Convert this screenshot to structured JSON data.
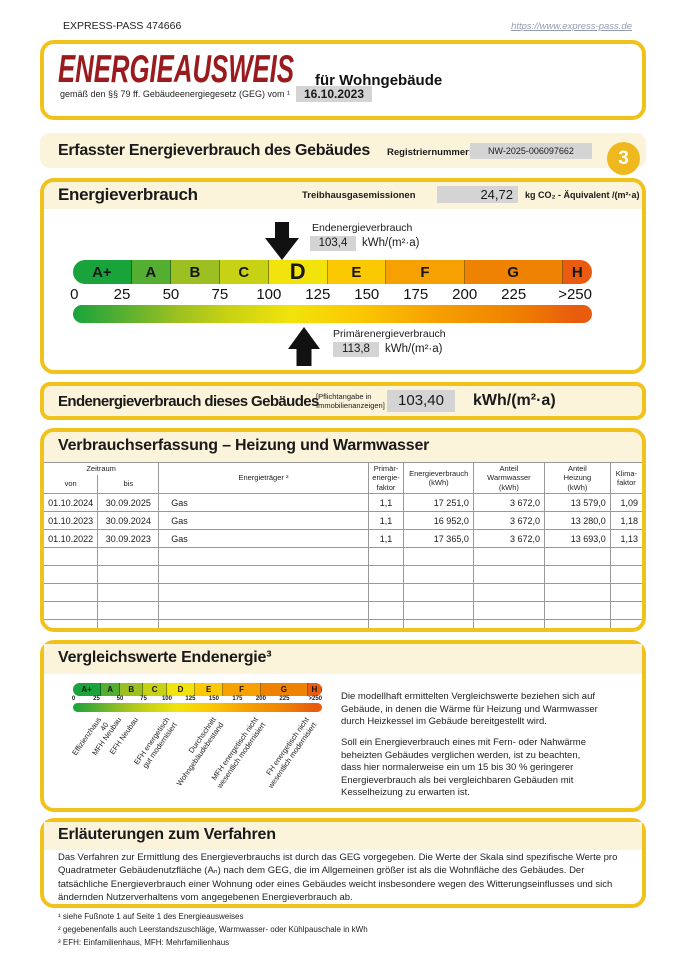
{
  "header": {
    "document_id": "EXPRESS-PASS 474666",
    "website": "https://www.express-pass.de"
  },
  "page_number": "3",
  "title": {
    "main": "ENERGIEAUSWEIS",
    "subtitle": "für Wohngebäude",
    "law_note": "gemäß den §§ 79 ff. Gebäudeenergiegesetz (GEG) vom ¹",
    "date": "16.10.2023"
  },
  "sections": {
    "erfasster": {
      "title": "Erfasster Energieverbrauch des Gebäudes",
      "reg_label": "Registriernummer:",
      "reg_number": "NW-2025-006097662"
    },
    "energieverbrauch": {
      "title": "Energieverbrauch",
      "ghg_label": "Treibhausgasemissionen",
      "ghg_value": "24,72",
      "ghg_unit": "kg CO₂ - Äquivalent  /(m²·a)",
      "end_label": "Endenergieverbrauch",
      "end_value": "103,4",
      "end_unit": "kWh/(m²·a)",
      "primary_label": "Primärenergieverbrauch",
      "primary_value": "113,8",
      "primary_unit": "kWh/(m²·a)",
      "scale": {
        "classes": [
          {
            "label": "A+",
            "color": "#18A43B",
            "units": 30
          },
          {
            "label": "A",
            "color": "#53AE32",
            "units": 20
          },
          {
            "label": "B",
            "color": "#9CC021",
            "units": 25
          },
          {
            "label": "C",
            "color": "#C8D214",
            "units": 25
          },
          {
            "label": "D",
            "color": "#F2E30C",
            "units": 30,
            "current": true
          },
          {
            "label": "E",
            "color": "#FBC802",
            "units": 30
          },
          {
            "label": "F",
            "color": "#F6A001",
            "units": 40
          },
          {
            "label": "G",
            "color": "#EF8200",
            "units": 50
          },
          {
            "label": "H",
            "color": "#E95B0E",
            "units": 15
          }
        ],
        "ticks": [
          "0",
          "25",
          "50",
          "75",
          "100",
          "125",
          "150",
          "175",
          "200",
          "225",
          ">250"
        ]
      }
    },
    "endenergie_bar": {
      "title": "Endenergieverbrauch dieses Gebäudes",
      "note": "[Pflichtangabe in\nImmobilienanzeigen]",
      "value": "103,40",
      "unit": "kWh/(m²·a)"
    },
    "verbrauchserfassung": {
      "title": "Verbrauchserfassung – Heizung und Warmwasser",
      "headers": {
        "zeitraum": "Zeitraum",
        "von": "von",
        "bis": "bis",
        "energietraeger": "Energieträger ²",
        "pef": "Primär-\nenergie-\nfaktor",
        "verbrauch": "Energieverbrauch\n(kWh)",
        "warmwasser": "Anteil\nWarmwasser\n(kWh)",
        "heizung": "Anteil\nHeizung\n(kWh)",
        "klima": "Klima-\nfaktor"
      },
      "rows": [
        [
          "01.10.2024",
          "30.09.2025",
          "Gas",
          "1,1",
          "17 251,0",
          "3 672,0",
          "13 579,0",
          "1,09"
        ],
        [
          "01.10.2023",
          "30.09.2024",
          "Gas",
          "1,1",
          "16 952,0",
          "3 672,0",
          "13 280,0",
          "1,18"
        ],
        [
          "01.10.2022",
          "30.09.2023",
          "Gas",
          "1,1",
          "17 365,0",
          "3 672,0",
          "13 693,0",
          "1,13"
        ]
      ],
      "empty_row_count": 6
    },
    "vergleichswerte": {
      "title": "Vergleichswerte Endenergie³",
      "labels": [
        {
          "text": "Effizienzhaus 40",
          "value": 25
        },
        {
          "text": "MFH Neubau",
          "value": 46
        },
        {
          "text": "EFH Neubau",
          "value": 64
        },
        {
          "text": "EFH energetisch\ngut modernisiert",
          "value": 98
        },
        {
          "text": "Durchschnitt\nWohngebäudebestand",
          "value": 147
        },
        {
          "text": "MFH energetisch nicht\nwesentlich modernisiert",
          "value": 192
        },
        {
          "text": "FH energetisch nicht\nwesentlich modernisiert",
          "value": 246
        }
      ],
      "paragraphs": [
        "Die modellhaft ermittelten Vergleichswerte beziehen sich auf Gebäude, in denen die Wärme für Heizung und Warm­wasser durch Heizkessel im Gebäude bereitgestellt wird.",
        "Soll ein Energieverbrauch eines mit Fern- oder Nahwärme beheizten Gebäudes verglichen werden, ist zu beachten, dass hier normalerweise ein um 15 bis 30 % geringerer Energieverbrauch als bei vergleichbaren Gebäuden mit Kesselheizung zu erwarten ist."
      ]
    },
    "erlaeuterungen": {
      "title": "Erläuterungen zum Verfahren",
      "text": "Das Verfahren zur Ermittlung des Energieverbrauchs ist durch das GEG vorgegeben. Die Werte der Skala sind spezifische Werte pro Quadratmeter Gebäudenutzfläche (Aₙ) nach dem GEG, die im Allgemeinen größer ist als die Wohnfläche des Gebäudes. Der tatsächliche Energieverbrauch einer Wohnung oder eines Gebäudes weicht insbesondere wegen des Witterungseinflusses und sich ändernden Nutzerverhaltens vom angegebenen Energieverbrauch ab."
    }
  },
  "footnotes": [
    "¹ siehe Fußnote 1 auf Seite 1 des Energieausweises",
    "² gegebenenfalls auch Leerstandszuschläge, Warmwasser- oder Kühlpauschale in kWh",
    "³ EFH: Einfamilienhaus, MFH: Mehrfamilienhaus"
  ],
  "colors": {
    "accent_gold": "#F1C21B",
    "cream": "#FCF3DB",
    "brand_red": "#9A1B1E",
    "value_box_gray": "#D4D4D4"
  }
}
